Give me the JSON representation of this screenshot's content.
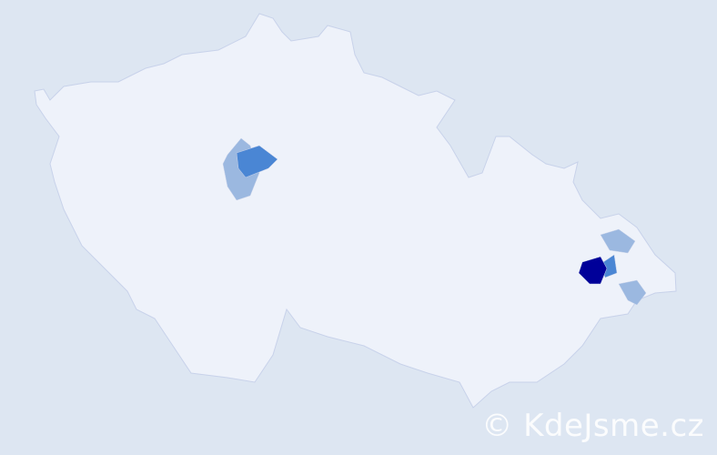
{
  "watermark": "© KdeJsme.cz",
  "colors": {
    "background": "#dde6f2",
    "land": "#eef2fa",
    "border": "#c8d2ea",
    "level_low": "#9bb8e0",
    "level_mid": "#4a86d4",
    "level_high": "#000099"
  },
  "regions": [
    {
      "level": "low"
    },
    {
      "level": "mid"
    },
    {
      "level": "low"
    },
    {
      "level": "mid"
    },
    {
      "level": "high"
    },
    {
      "level": "low"
    }
  ]
}
